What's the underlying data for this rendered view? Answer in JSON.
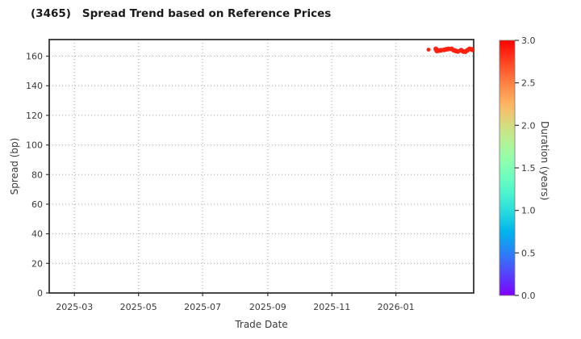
{
  "header": {
    "ticker": "(3465)",
    "title": "Spread Trend based on Reference Prices"
  },
  "chart_data": {
    "type": "scatter",
    "title": "(3465)   Spread Trend based on Reference Prices",
    "xlabel": "Trade Date",
    "ylabel": "Spread (bp)",
    "grid": "dotted",
    "legend": "none (colorbar only)",
    "x_axis": {
      "kind": "date",
      "min": "2025-02-05",
      "max": "2026-03-16",
      "ticks": [
        {
          "label": "2025-03",
          "date": "2025-03-01"
        },
        {
          "label": "2025-05",
          "date": "2025-05-01"
        },
        {
          "label": "2025-07",
          "date": "2025-07-01"
        },
        {
          "label": "2025-09",
          "date": "2025-09-01"
        },
        {
          "label": "2025-11",
          "date": "2025-11-01"
        },
        {
          "label": "2026-01",
          "date": "2026-01-01"
        }
      ]
    },
    "y_axis": {
      "min": 0,
      "max": 171.2,
      "ticks": [
        0,
        20,
        40,
        60,
        80,
        100,
        120,
        140,
        160
      ]
    },
    "colorbar": {
      "label": "Duration (years)",
      "min": 0.0,
      "max": 3.0,
      "ticks": [
        "0.0",
        "0.5",
        "1.0",
        "1.5",
        "2.0",
        "2.5",
        "3.0"
      ],
      "colormap": "rainbow",
      "bottom_color": "#8000ff",
      "top_color": "#ff0000"
    },
    "marker_color": "#ee3b22",
    "points": [
      {
        "date": "2026-02-01",
        "spread_bp": 164.4,
        "duration_years": 2.88,
        "r": 2.4
      },
      {
        "date": "2026-02-08",
        "spread_bp": 164.9,
        "duration_years": 2.88
      },
      {
        "date": "2026-02-09",
        "spread_bp": 163.5,
        "duration_years": 2.88
      },
      {
        "date": "2026-02-11",
        "spread_bp": 163.8,
        "duration_years": 2.88
      },
      {
        "date": "2026-02-13",
        "spread_bp": 164.0,
        "duration_years": 2.88
      },
      {
        "date": "2026-02-16",
        "spread_bp": 164.3,
        "duration_years": 2.88
      },
      {
        "date": "2026-02-18",
        "spread_bp": 164.6,
        "duration_years": 2.88
      },
      {
        "date": "2026-02-20",
        "spread_bp": 164.9,
        "duration_years": 2.88
      },
      {
        "date": "2026-02-23",
        "spread_bp": 164.9,
        "duration_years": 2.88
      },
      {
        "date": "2026-02-25",
        "spread_bp": 164.0,
        "duration_years": 2.88
      },
      {
        "date": "2026-02-27",
        "spread_bp": 163.5,
        "duration_years": 2.88
      },
      {
        "date": "2026-03-01",
        "spread_bp": 163.2,
        "duration_years": 2.88
      },
      {
        "date": "2026-03-04",
        "spread_bp": 164.0,
        "duration_years": 2.88
      },
      {
        "date": "2026-03-06",
        "spread_bp": 163.2,
        "duration_years": 2.88
      },
      {
        "date": "2026-03-08",
        "spread_bp": 163.0,
        "duration_years": 2.88
      },
      {
        "date": "2026-03-10",
        "spread_bp": 164.0,
        "duration_years": 2.88
      },
      {
        "date": "2026-03-12",
        "spread_bp": 164.9,
        "duration_years": 2.88
      },
      {
        "date": "2026-03-14",
        "spread_bp": 164.6,
        "duration_years": 2.88
      },
      {
        "date": "2026-03-15",
        "spread_bp": 164.3,
        "duration_years": 2.88
      }
    ]
  }
}
